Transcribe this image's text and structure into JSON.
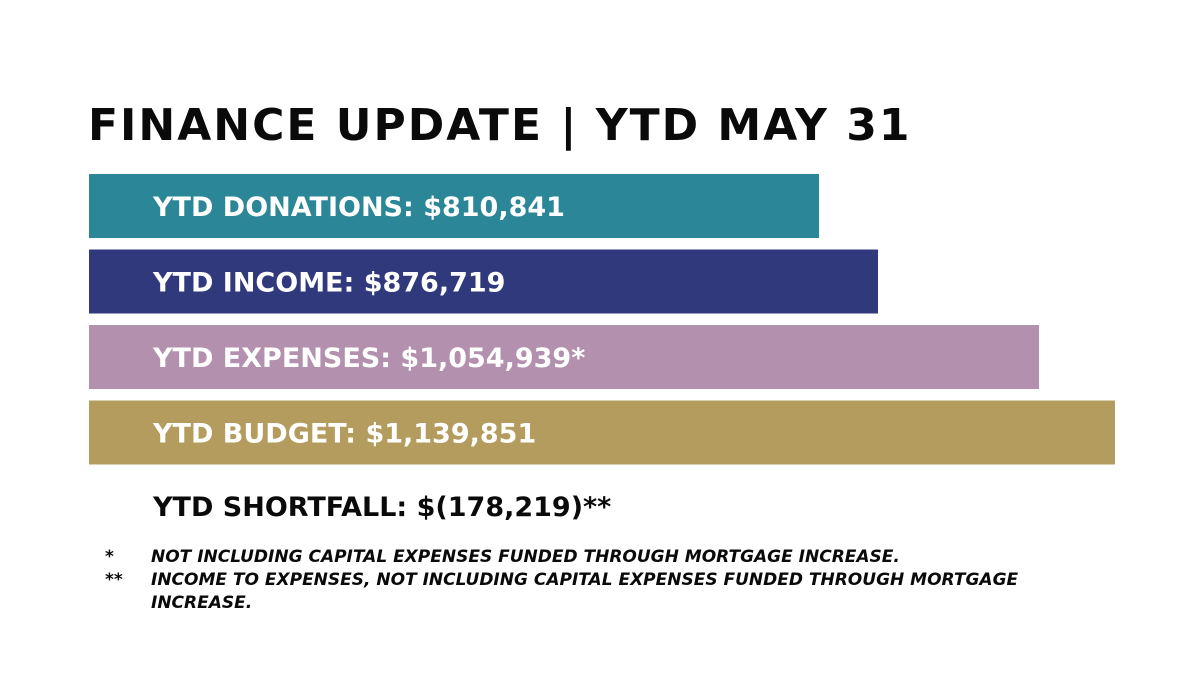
{
  "title": "FINANCE UPDATE | YTD MAY 31",
  "chart_data": {
    "type": "bar",
    "orientation": "horizontal",
    "categories": [
      "YTD DONATIONS",
      "YTD INCOME",
      "YTD EXPENSES",
      "YTD BUDGET"
    ],
    "values": [
      810841,
      876719,
      1054939,
      1139851
    ],
    "labels": [
      "YTD DONATIONS: $810,841",
      "YTD INCOME: $876,719",
      "YTD EXPENSES: $1,054,939*",
      "YTD BUDGET: $1,139,851"
    ],
    "colors": [
      "#2b8797",
      "#2f397c",
      "#b390ad",
      "#b39c5d"
    ],
    "title": "FINANCE UPDATE | YTD MAY 31"
  },
  "shortfall": "YTD SHORTFALL: $(178,219)**",
  "footnotes": [
    {
      "marker": "*",
      "text": "NOT INCLUDING CAPITAL EXPENSES FUNDED THROUGH MORTGAGE INCREASE."
    },
    {
      "marker": "**",
      "text": "INCOME TO EXPENSES, NOT INCLUDING CAPITAL EXPENSES FUNDED THROUGH MORTGAGE INCREASE."
    }
  ]
}
